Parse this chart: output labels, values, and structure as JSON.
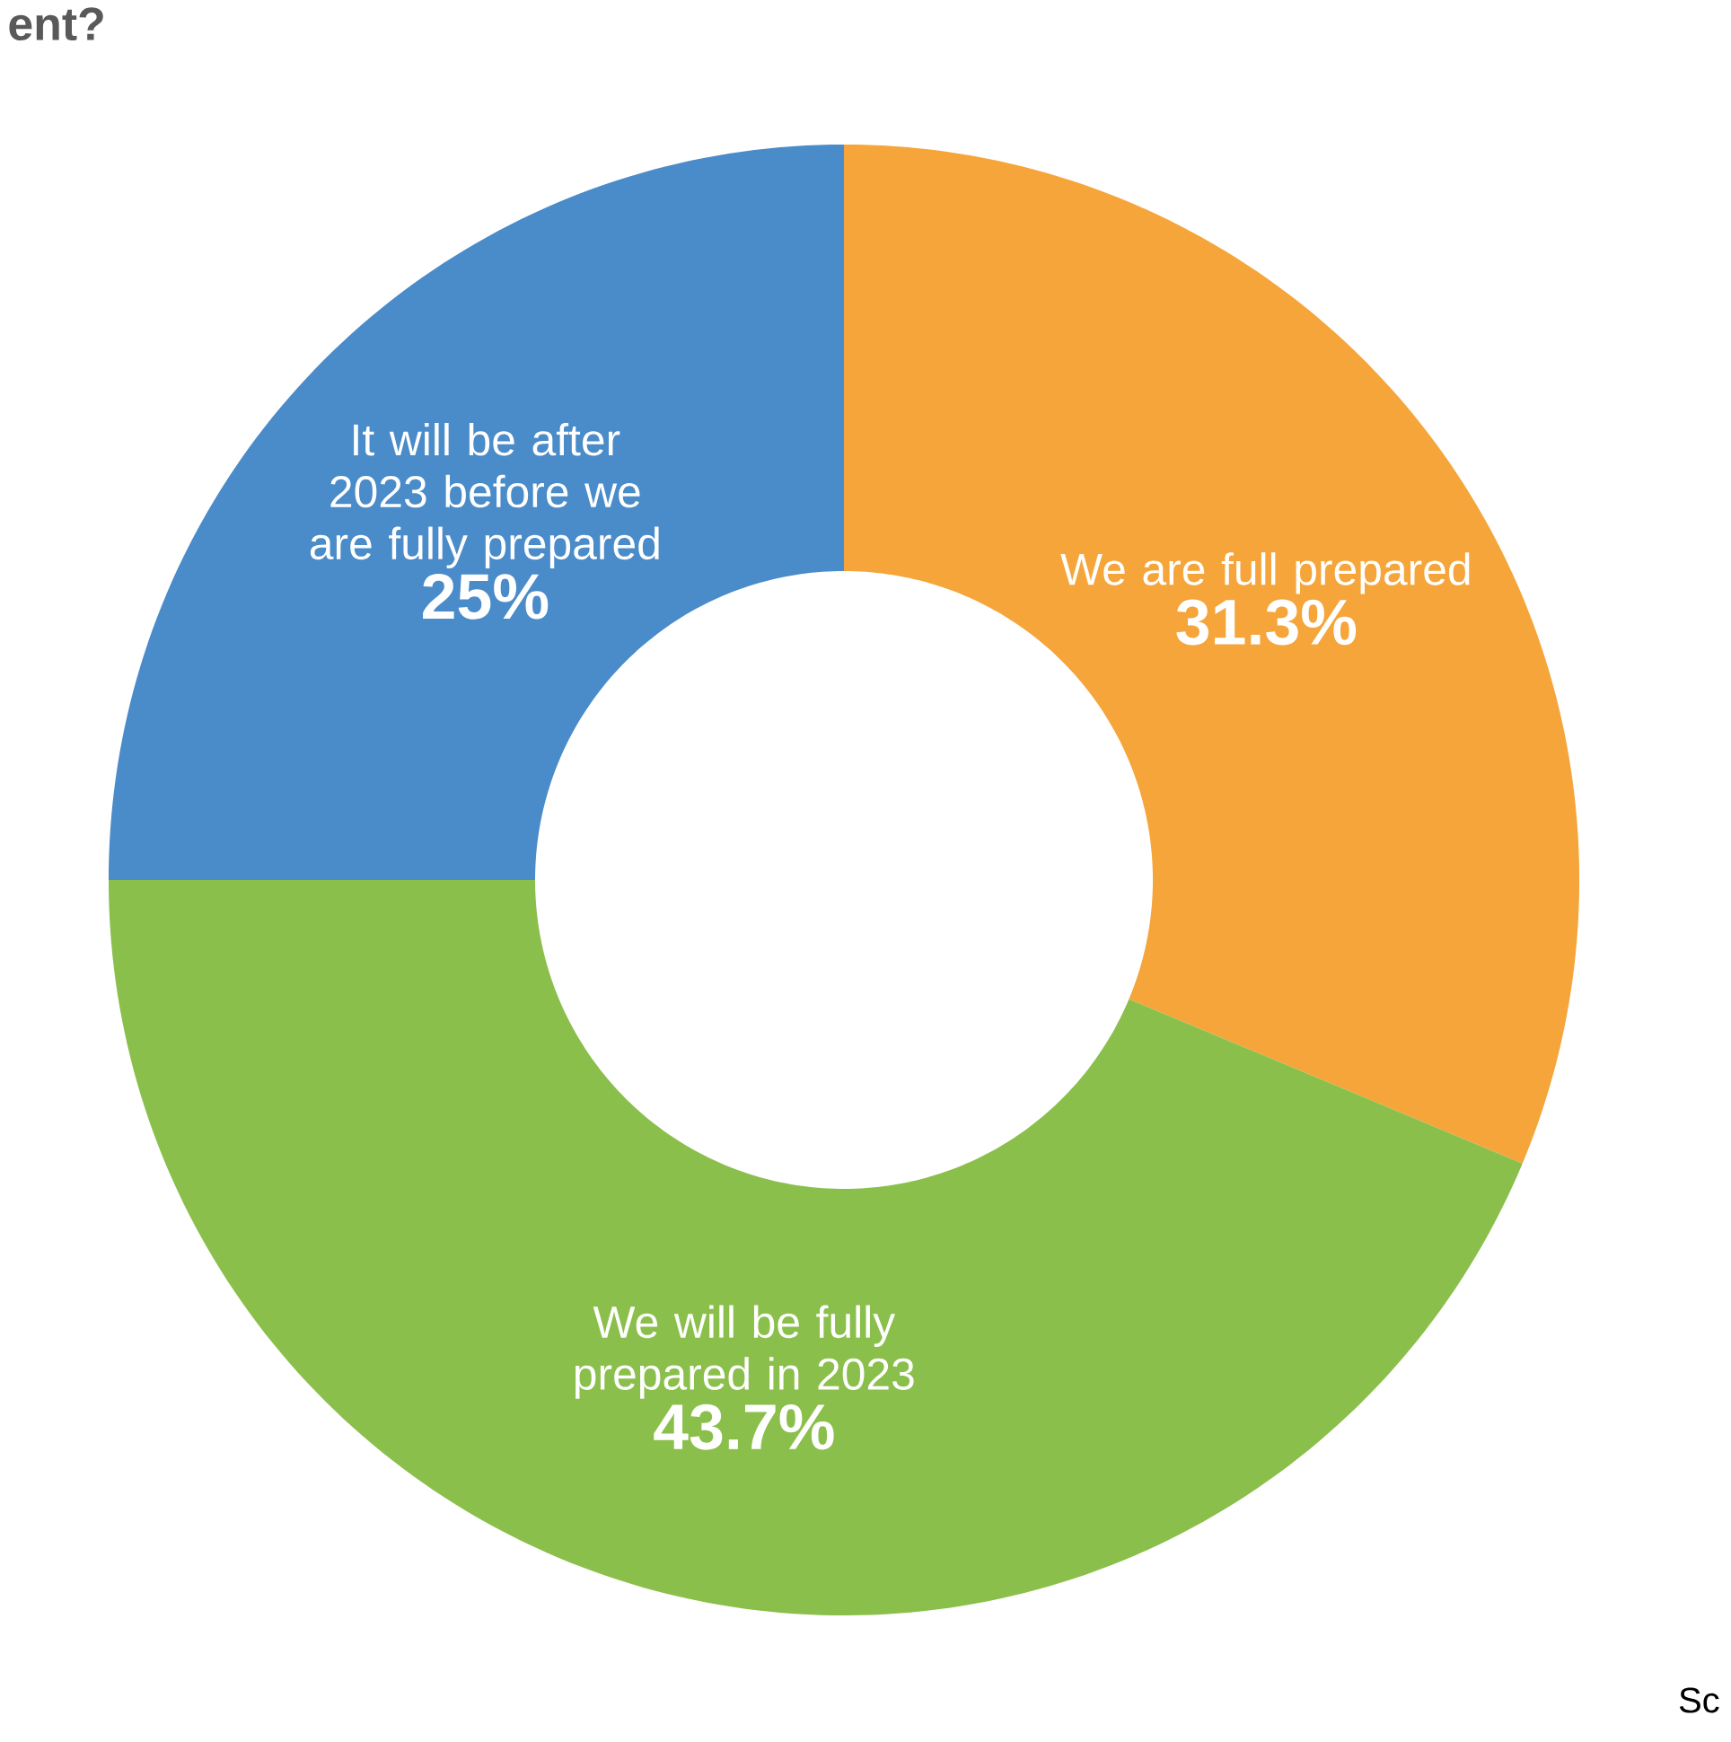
{
  "chart_data": {
    "type": "donut",
    "title": "ent?",
    "categories": [
      "We are full prepared",
      "We will be fully prepared in 2023",
      "It will be after 2023 before we are fully prepared"
    ],
    "values": [
      31.3,
      43.7,
      25
    ],
    "value_labels": [
      "31.3%",
      "43.7%",
      "25%"
    ],
    "colors": [
      "#f5a53a",
      "#8bbf4b",
      "#4a8bc9"
    ],
    "annotations": [
      "Sc"
    ]
  }
}
